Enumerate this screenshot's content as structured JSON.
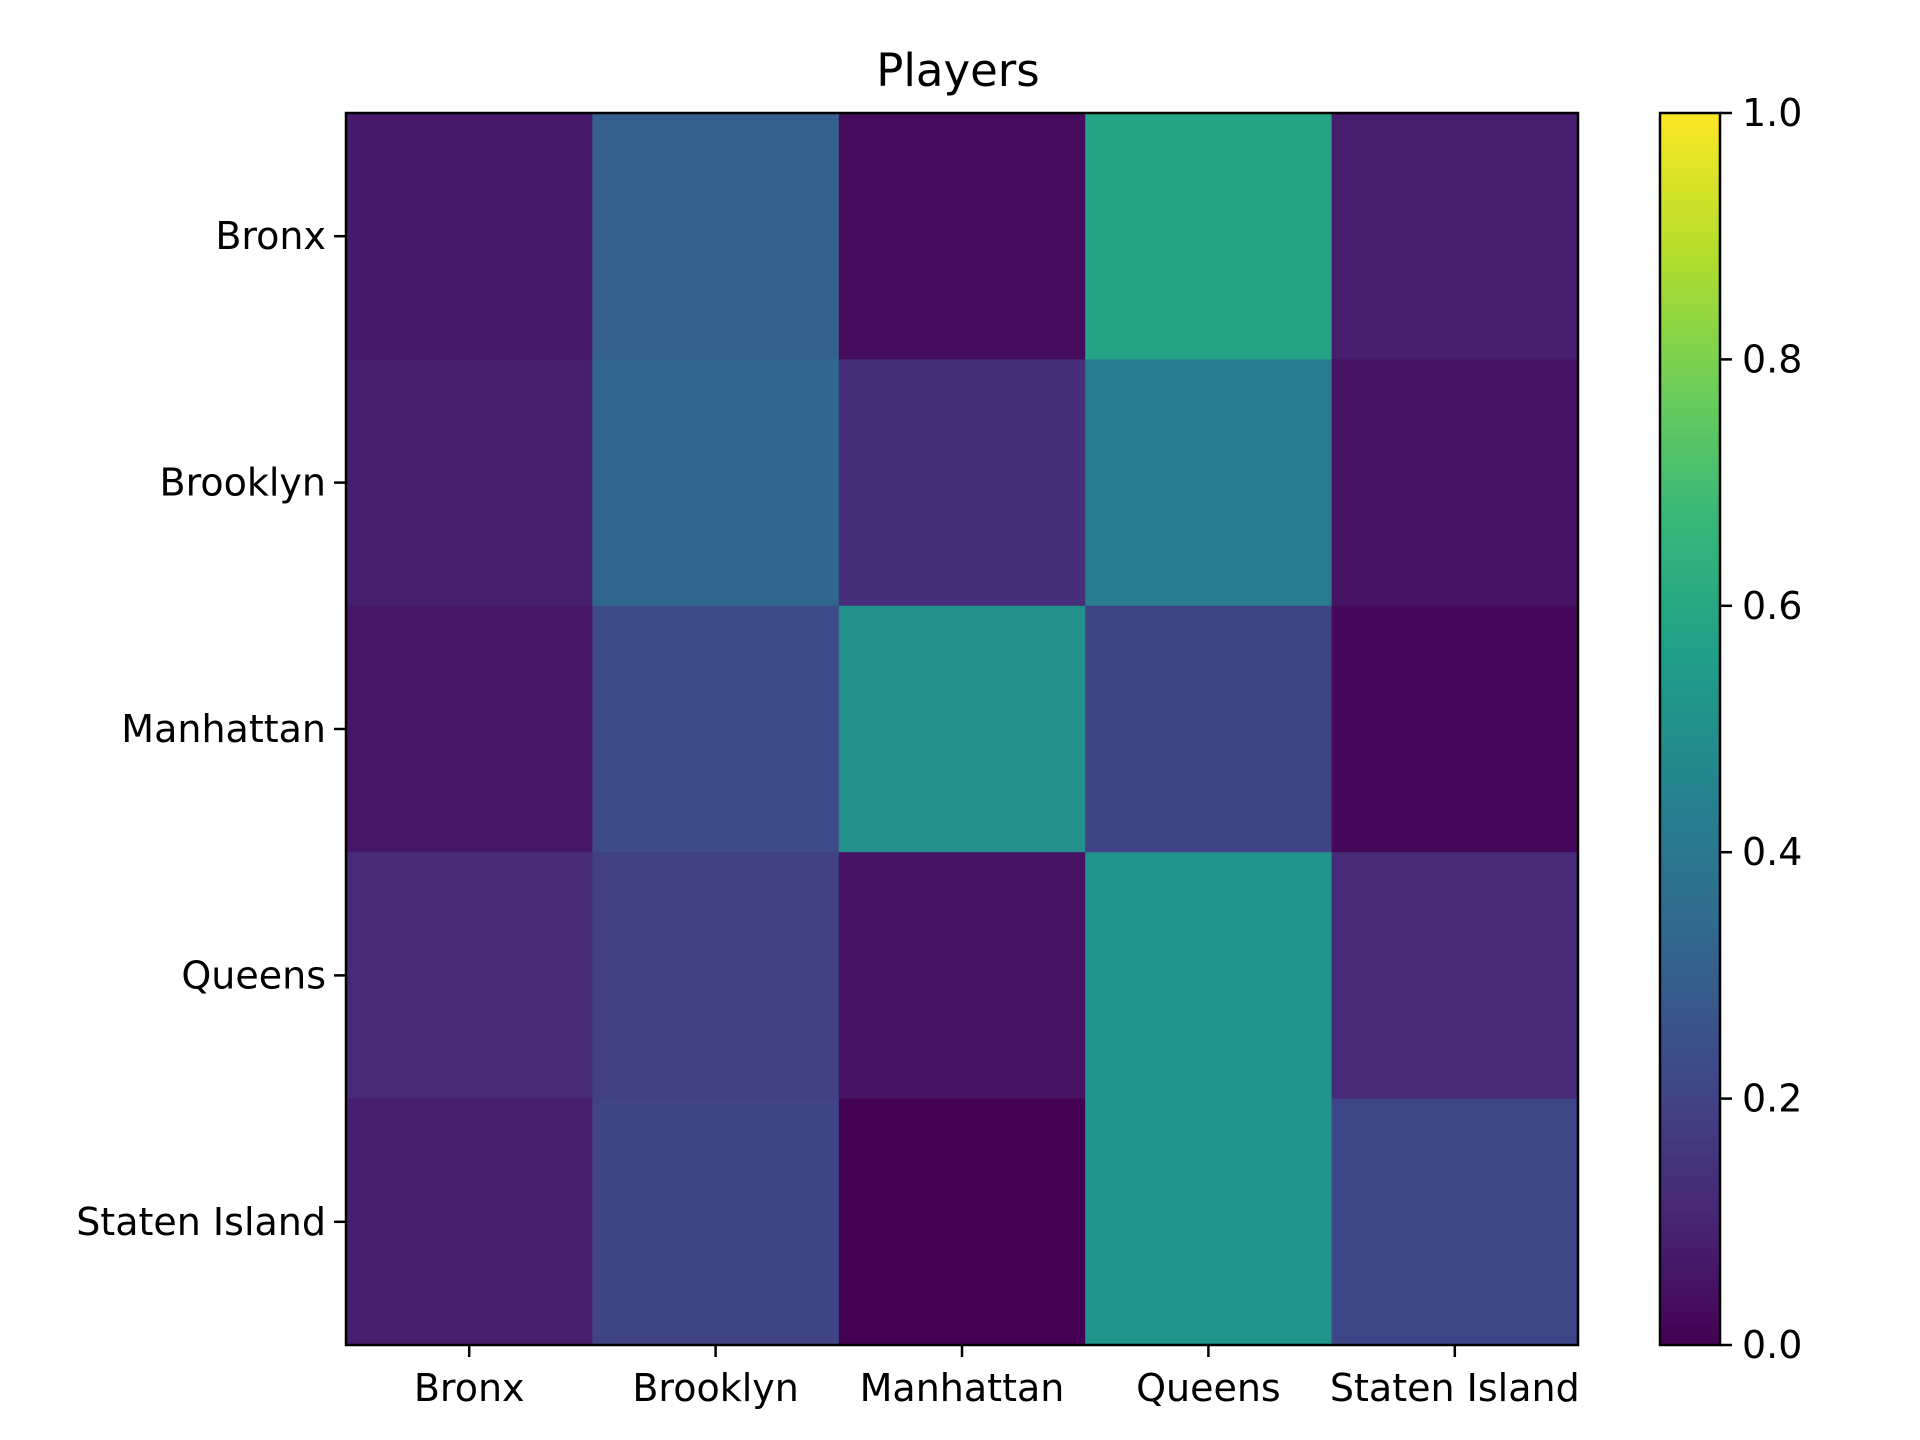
{
  "chart_data": {
    "type": "heatmap",
    "title": "Players",
    "xlabel": "",
    "ylabel": "",
    "x_categories": [
      "Bronx",
      "Brooklyn",
      "Manhattan",
      "Queens",
      "Staten Island"
    ],
    "y_categories": [
      "Bronx",
      "Brooklyn",
      "Manhattan",
      "Queens",
      "Staten Island"
    ],
    "values": [
      [
        0.07,
        0.3,
        0.03,
        0.58,
        0.08
      ],
      [
        0.08,
        0.33,
        0.13,
        0.42,
        0.05
      ],
      [
        0.06,
        0.23,
        0.5,
        0.2,
        0.02
      ],
      [
        0.12,
        0.19,
        0.05,
        0.52,
        0.12
      ],
      [
        0.08,
        0.2,
        0.0,
        0.52,
        0.21
      ]
    ],
    "colormap": "viridis",
    "colorbar": {
      "range": [
        0.0,
        1.0
      ],
      "ticks": [
        0.0,
        0.2,
        0.4,
        0.6,
        0.8,
        1.0
      ],
      "tick_labels": [
        "0.0",
        "0.2",
        "0.4",
        "0.6",
        "0.8",
        "1.0"
      ]
    },
    "grid": false
  }
}
